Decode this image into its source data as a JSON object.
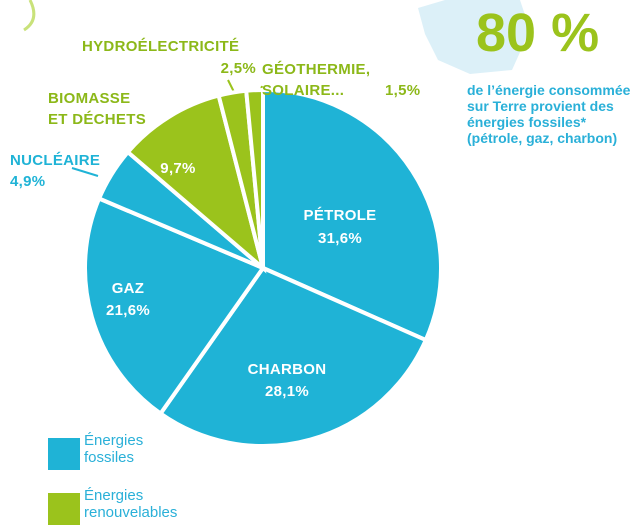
{
  "chart_data": {
    "type": "pie",
    "categories": [
      "PÉTROLE",
      "CHARBON",
      "GAZ",
      "NUCLÉAIRE",
      "BIOMASSE ET DÉCHETS",
      "HYDROÉLECTRICITÉ",
      "GÉOTHERMIE, SOLAIRE..."
    ],
    "values": [
      31.6,
      28.1,
      21.6,
      4.9,
      9.7,
      2.5,
      1.5
    ],
    "value_labels": [
      "31,6%",
      "28,1%",
      "21,6%",
      "4,9%",
      "9,7%",
      "2,5%",
      "1,5%"
    ],
    "colors": [
      "#1fb3d6",
      "#1fb3d6",
      "#1fb3d6",
      "#1fb3d6",
      "#9bc31c",
      "#9bc31c",
      "#9bc31c"
    ],
    "legend": [
      {
        "name": "Énergies fossiles",
        "color": "#1fb3d6"
      },
      {
        "name": "Énergies renouvelables",
        "color": "#9bc31c"
      }
    ],
    "highlight": "80 %",
    "note": "de l’énergie consommée sur Terre provient des énergies fossiles* (pétrole, gaz, charbon)"
  }
}
